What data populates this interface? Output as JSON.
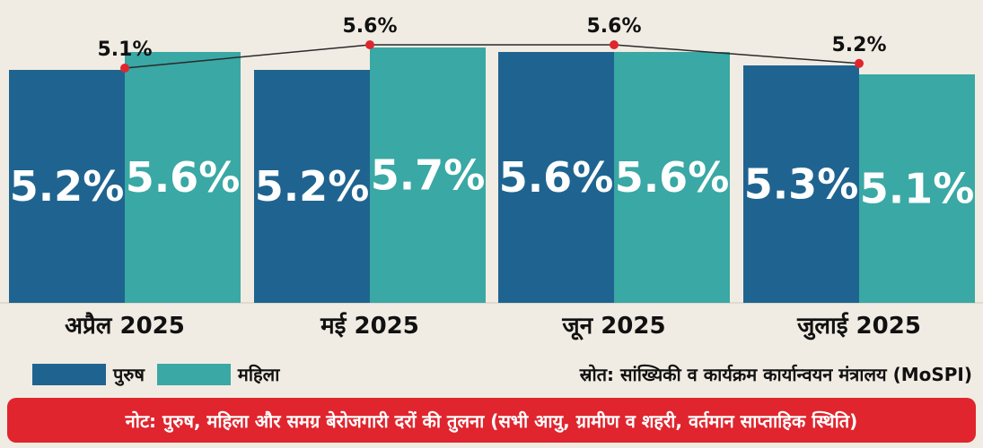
{
  "chart_data": {
    "type": "bar",
    "categories": [
      "अप्रैल 2025",
      "मई 2025",
      "जून 2025",
      "जुलाई 2025"
    ],
    "series": [
      {
        "name": "पुरुष",
        "values": [
          5.2,
          5.2,
          5.6,
          5.3
        ],
        "labels": [
          "5.2%",
          "5.2%",
          "5.6%",
          "5.3%"
        ]
      },
      {
        "name": "महिला",
        "values": [
          5.6,
          5.7,
          5.6,
          5.1
        ],
        "labels": [
          "5.6%",
          "5.7%",
          "5.6%",
          "5.1%"
        ]
      }
    ],
    "overall_line": {
      "values": [
        5.1,
        5.6,
        5.6,
        5.2
      ],
      "labels": [
        "5.1%",
        "5.6%",
        "5.6%",
        "5.2%"
      ]
    },
    "title": "",
    "xlabel": "",
    "ylabel": ""
  },
  "legend": {
    "male": "पुरुष",
    "female": "महिला"
  },
  "source_text": "स्रोत: सांख्यिकी व कार्यक्रम कार्यान्वयन मंत्रालय (MoSPI)",
  "note_text": "नोट: पुरुष, महिला और समग्र बेरोजगारी दरों की तुलना (सभी आयु, ग्रामीण व शहरी, वर्तमान साप्ताहिक स्थिति)",
  "colors": {
    "male": "#1f6490",
    "female": "#3aa8a4",
    "line": "#2a2a2a",
    "marker": "#e0252e",
    "note_bg": "#e0252e"
  }
}
